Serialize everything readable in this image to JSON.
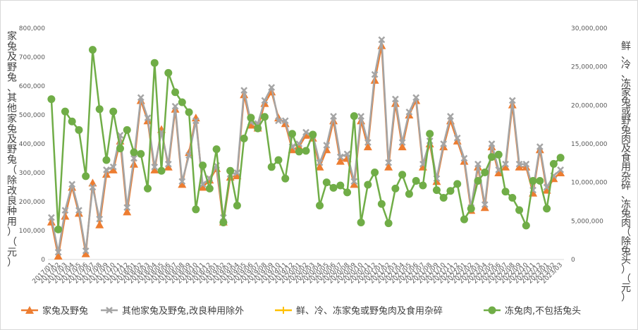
{
  "chart_data": {
    "type": "line",
    "title": "",
    "ylabel_left": "家兔及野兔、其他家兔及野兔（除改良种用）（元）",
    "ylabel_right": "鲜、冷、冻家兔或野兔肉及食用杂碎、冻兔肉（除兔头）（元）",
    "ylim_left": [
      0,
      800000
    ],
    "ylim_right": [
      0,
      30000000
    ],
    "yticks_left": [
      "0",
      "100,000",
      "200,000",
      "300,000",
      "400,000",
      "500,000",
      "600,000",
      "700,000",
      "800,000"
    ],
    "yticks_right": [
      "0",
      "5,000,000",
      "10,000,000",
      "15,000,000",
      "20,000,000",
      "25,000,000",
      "30,000,000"
    ],
    "xtick_labels": [
      "2017/01",
      "2017/02",
      "2017/03",
      "2017/04",
      "2017/05",
      "2017/06",
      "2017/07",
      "2017/08",
      "2017/09",
      "2017/10",
      "2017/11",
      "2017/12",
      "2018/01",
      "2018/02",
      "2018/03",
      "2018/04",
      "2018/05",
      "2018/06",
      "2018/07",
      "2018/08",
      "2018/09",
      "2018/10",
      "2018/11",
      "2018/12",
      "2019/01",
      "2019/02",
      "2019/03",
      "2019/04",
      "2019/05",
      "2019/06",
      "2019/07",
      "2019/08",
      "2019/09",
      "2019/10",
      "2019/11",
      "2019/12",
      "2020/01",
      "2020/02",
      "2020/03",
      "2020/04",
      "2020/05",
      "2020/06",
      "2020/07",
      "2020/08",
      "2020/09",
      "2020/10",
      "2020/11",
      "2020/12",
      "2021/01",
      "2021/02",
      "2021/03",
      "2021/04",
      "2021/05",
      "2021/06",
      "2021/07",
      "2021/08",
      "2021/09",
      "2021/10",
      "2021/11",
      "2021/12",
      "2022/01",
      "2022/02",
      "2022/03",
      "2022/04",
      "2022/05",
      "2022/06",
      "2022/07",
      "2022/08",
      "2022/09",
      "2022/10",
      "2022/11",
      "2022/12",
      "2023/01",
      "2023/02",
      "2023/03"
    ],
    "series": [
      {
        "name": "家兔及野兔",
        "axis": "left",
        "color": "#ed7d31",
        "marker": "triangle",
        "values": [
          130000,
          12000,
          150000,
          250000,
          160000,
          20000,
          265000,
          120000,
          295000,
          310000,
          410000,
          165000,
          330000,
          550000,
          480000,
          310000,
          450000,
          320000,
          520000,
          260000,
          370000,
          490000,
          250000,
          275000,
          315000,
          130000,
          285000,
          290000,
          570000,
          465000,
          455000,
          540000,
          580000,
          490000,
          470000,
          380000,
          390000,
          430000,
          420000,
          320000,
          380000,
          480000,
          340000,
          350000,
          260000,
          480000,
          390000,
          620000,
          740000,
          320000,
          540000,
          390000,
          500000,
          550000,
          320000,
          400000,
          270000,
          390000,
          480000,
          410000,
          340000,
          170000,
          320000,
          180000,
          390000,
          300000,
          320000,
          535000,
          320000,
          320000,
          230000,
          380000,
          240000,
          280000,
          300000
        ]
      },
      {
        "name": "其他家兔及野兔,改良种用除外",
        "axis": "left",
        "color": "#a5a5a5",
        "marker": "x",
        "values": [
          145000,
          25000,
          170000,
          260000,
          170000,
          30000,
          250000,
          140000,
          310000,
          320000,
          430000,
          180000,
          350000,
          560000,
          490000,
          320000,
          440000,
          330000,
          530000,
          270000,
          360000,
          480000,
          260000,
          280000,
          325000,
          145000,
          295000,
          300000,
          585000,
          475000,
          470000,
          550000,
          595000,
          480000,
          480000,
          390000,
          400000,
          440000,
          430000,
          335000,
          395000,
          495000,
          355000,
          365000,
          270000,
          495000,
          405000,
          640000,
          760000,
          335000,
          555000,
          405000,
          510000,
          560000,
          330000,
          410000,
          280000,
          400000,
          495000,
          420000,
          350000,
          180000,
          330000,
          190000,
          400000,
          310000,
          330000,
          550000,
          330000,
          330000,
          240000,
          390000,
          250000,
          290000,
          310000
        ]
      },
      {
        "name": "鲜、冷、冻家兔或野兔肉及食用杂碎",
        "axis": "right",
        "color": "#ffc000",
        "marker": "none",
        "values": []
      },
      {
        "name": "冻兔肉,不包括兔头",
        "axis": "right",
        "color": "#70ad47",
        "marker": "circle",
        "values": [
          20800000,
          3900000,
          19200000,
          17900000,
          16800000,
          10800000,
          27200000,
          19500000,
          12900000,
          19200000,
          14400000,
          16800000,
          13900000,
          13700000,
          9200000,
          25500000,
          11500000,
          24200000,
          21700000,
          20400000,
          19100000,
          6500000,
          12200000,
          9200000,
          14300000,
          4800000,
          11500000,
          7000000,
          15700000,
          18400000,
          17000000,
          18500000,
          12000000,
          12900000,
          10500000,
          16300000,
          14000000,
          14100000,
          16200000,
          7000000,
          10000000,
          9300000,
          9600000,
          8700000,
          18600000,
          4800000,
          9700000,
          11300000,
          7200000,
          4700000,
          9200000,
          11000000,
          8500000,
          10200000,
          9600000,
          16300000,
          9000000,
          8000000,
          8900000,
          9800000,
          5200000,
          6600000,
          10200000,
          11300000,
          13300000,
          13600000,
          8800000,
          8000000,
          6400000,
          4400000,
          10200000,
          10200000,
          6600000,
          12400000,
          13200000
        ]
      }
    ]
  },
  "legend": {
    "items": [
      {
        "label": "家兔及野兔",
        "color": "#ed7d31",
        "marker": "triangle"
      },
      {
        "label": "其他家兔及野兔,改良种用除外",
        "color": "#a5a5a5",
        "marker": "x"
      },
      {
        "label": "鲜、冷、冻家兔或野兔肉及食用杂碎",
        "color": "#ffc000",
        "marker": "plus"
      },
      {
        "label": "冻兔肉,不包括兔头",
        "color": "#70ad47",
        "marker": "circle"
      }
    ]
  }
}
